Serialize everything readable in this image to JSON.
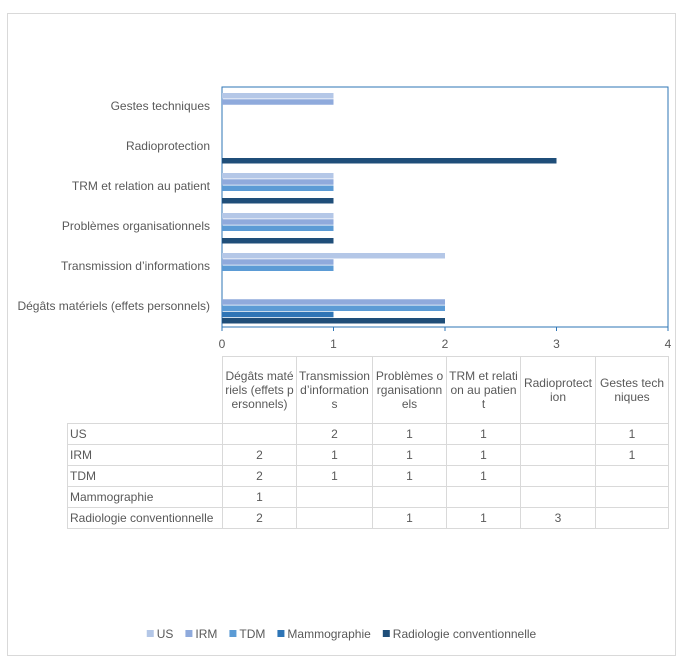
{
  "chart_data": {
    "type": "bar",
    "orientation": "horizontal",
    "categories": [
      "Dégâts matériels (effets personnels)",
      "Transmission d’informations",
      "Problèmes organisationnels",
      "TRM et relation au patient",
      "Radioprotection",
      "Gestes techniques"
    ],
    "series": [
      {
        "name": "US",
        "color": "#b4c7e7",
        "values": [
          null,
          2,
          1,
          1,
          null,
          1
        ]
      },
      {
        "name": "IRM",
        "color": "#8faadc",
        "values": [
          2,
          1,
          1,
          1,
          null,
          1
        ]
      },
      {
        "name": "TDM",
        "color": "#5b9bd5",
        "values": [
          2,
          1,
          1,
          1,
          null,
          null
        ]
      },
      {
        "name": "Mammographie",
        "color": "#2e75b6",
        "values": [
          1,
          null,
          null,
          null,
          null,
          null
        ]
      },
      {
        "name": "Radiologie conventionnelle",
        "color": "#1f4e79",
        "values": [
          2,
          null,
          1,
          1,
          3,
          null
        ]
      }
    ],
    "xlim": [
      0,
      4
    ],
    "xticks": [
      0,
      1,
      2,
      3,
      4
    ],
    "data_table": true,
    "legend": "bottom"
  }
}
